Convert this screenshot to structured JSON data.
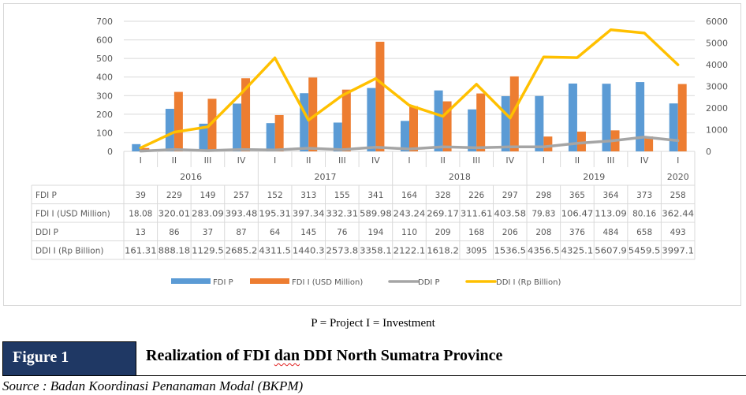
{
  "chart_data": {
    "type": "bar",
    "combo": "bar+line with data table",
    "categories": [
      "I",
      "II",
      "III",
      "IV",
      "I",
      "II",
      "III",
      "IV",
      "I",
      "II",
      "III",
      "IV",
      "I",
      "II",
      "III",
      "IV",
      "I"
    ],
    "years": [
      {
        "label": "2016",
        "span": 4
      },
      {
        "label": "2017",
        "span": 4
      },
      {
        "label": "2018",
        "span": 4
      },
      {
        "label": "2019",
        "span": 4
      },
      {
        "label": "2020",
        "span": 1
      }
    ],
    "series": [
      {
        "name": "FDI P",
        "type": "bar",
        "axis": "left",
        "color": "#5b9bd5",
        "values": [
          39,
          229,
          149,
          257,
          152,
          313,
          155,
          341,
          164,
          328,
          226,
          297,
          298,
          365,
          364,
          373,
          258
        ],
        "table": [
          "39",
          "229",
          "149",
          "257",
          "152",
          "313",
          "155",
          "341",
          "164",
          "328",
          "226",
          "297",
          "298",
          "365",
          "364",
          "373",
          "258"
        ]
      },
      {
        "name": "FDI I (USD Million)",
        "type": "bar",
        "axis": "left",
        "color": "#ed7d31",
        "values": [
          18.08,
          320.01,
          283.09,
          393.48,
          195.31,
          397.34,
          332.31,
          589.98,
          243.24,
          269.17,
          311.61,
          403.58,
          79.83,
          106.47,
          113.09,
          80.16,
          362.44
        ],
        "table": [
          "18.08",
          "320.01",
          "283.09",
          "393.48",
          "195.31",
          "397.34",
          "332.31",
          "589.98",
          "243.24",
          "269.17",
          "311.61",
          "403.58",
          "79.83",
          "106.47",
          "113.09",
          "80.16",
          "362.44"
        ]
      },
      {
        "name": "DDI P",
        "type": "line",
        "axis": "right",
        "color": "#a5a5a5",
        "values": [
          13,
          86,
          37,
          87,
          64,
          145,
          76,
          194,
          110,
          209,
          168,
          206,
          208,
          376,
          484,
          658,
          493
        ],
        "table": [
          "13",
          "86",
          "37",
          "87",
          "64",
          "145",
          "76",
          "194",
          "110",
          "209",
          "168",
          "206",
          "208",
          "376",
          "484",
          "658",
          "493"
        ]
      },
      {
        "name": "DDI I (Rp Billion)",
        "type": "line",
        "axis": "right",
        "color": "#ffc000",
        "values": [
          161.31,
          888.18,
          1129.5,
          2685.2,
          4311.5,
          1440.3,
          2573.8,
          3358.1,
          2122.1,
          1618.2,
          3095,
          1536.5,
          4356.5,
          4325.1,
          5607.9,
          5459.5,
          3997.1
        ],
        "table": [
          "161.31",
          "888.18",
          "1129.5",
          "2685.2",
          "4311.5",
          "1440.3",
          "2573.8",
          "3358.1",
          "2122.1",
          "1618.2",
          "3095",
          "1536.5",
          "4356.5",
          "4325.1",
          "5607.9",
          "5459.5",
          "3997.1"
        ]
      }
    ],
    "row_labels": [
      "FDI P",
      "FDI I (USD Million)",
      "DDI P",
      "DDI I (Rp Billion)"
    ],
    "legend_labels": [
      "FDI P",
      "FDI I (USD Million)",
      "DDI P",
      "DDI I (Rp Billion)"
    ],
    "left_axis": {
      "min": 0,
      "max": 700,
      "ticks": [
        "0",
        "100",
        "200",
        "300",
        "400",
        "500",
        "600",
        "700"
      ]
    },
    "right_axis": {
      "min": 0,
      "max": 6000,
      "ticks": [
        "0",
        "1000",
        "2000",
        "3000",
        "4000",
        "5000",
        "6000"
      ]
    },
    "grid": true,
    "legend_position": "bottom"
  },
  "caption": {
    "note": "P = Project   I = Investment",
    "figure_label": "Figure 1",
    "title_before": "Realization of FDI ",
    "title_flagged_word": "dan",
    "title_after": " DDI North Sumatra Province",
    "source": "Source : Badan Koordinasi Penanaman Modal (BKPM)"
  }
}
